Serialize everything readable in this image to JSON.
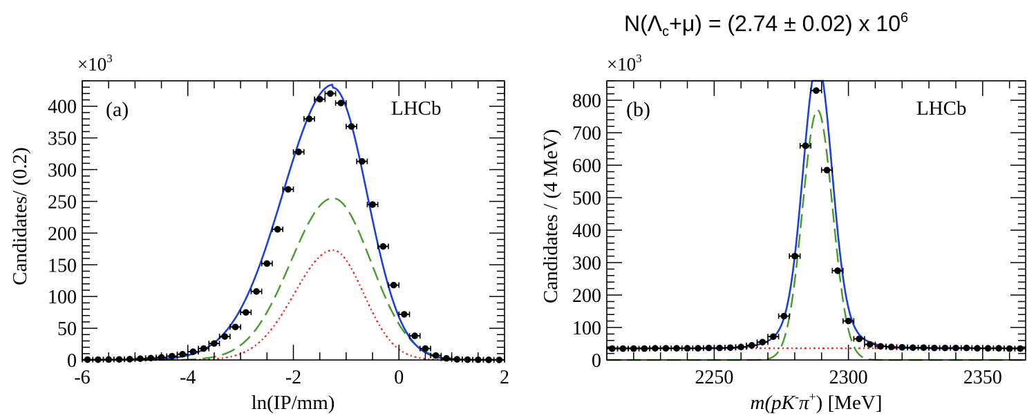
{
  "header_annotation": {
    "prefix": "N(Λ",
    "sub": "c",
    "mid": "+μ) = (2.74 ± 0.02) x 10",
    "sup": "6"
  },
  "colors": {
    "data": "#000000",
    "total_fit": "#1b3fe0",
    "signal": "#4a9a2a",
    "background": "#ee2a2a",
    "frame": "#000000"
  },
  "chart_data": [
    {
      "id": "a",
      "type": "scatter",
      "panel_label": "(a)",
      "experiment_label": "LHCb",
      "multiplier_label": "×10",
      "multiplier_exp": "3",
      "xlabel": "ln(IP/mm)",
      "ylabel": "Candidates/ (0.2)",
      "xlim": [
        -6,
        2
      ],
      "ylim": [
        0,
        440
      ],
      "xticks": [
        -6,
        -4,
        -2,
        0,
        2
      ],
      "xtick_labels": [
        "-6",
        "-4",
        "-2",
        "0",
        "2"
      ],
      "yticks": [
        0,
        50,
        100,
        150,
        200,
        250,
        300,
        350,
        400
      ],
      "ytick_labels": [
        "0",
        "50",
        "100",
        "150",
        "200",
        "250",
        "300",
        "350",
        "400"
      ],
      "bin_width": 0.2,
      "series": [
        {
          "style": "points-with-errors",
          "x": [
            -5.9,
            -5.7,
            -5.5,
            -5.3,
            -5.1,
            -4.9,
            -4.7,
            -4.5,
            -4.3,
            -4.1,
            -3.9,
            -3.7,
            -3.5,
            -3.3,
            -3.1,
            -2.9,
            -2.7,
            -2.5,
            -2.3,
            -2.1,
            -1.9,
            -1.7,
            -1.5,
            -1.3,
            -1.1,
            -0.9,
            -0.7,
            -0.5,
            -0.3,
            -0.1,
            0.1,
            0.3,
            0.5,
            0.7,
            0.9,
            1.1,
            1.3,
            1.5,
            1.7,
            1.9
          ],
          "y": [
            0.5,
            0.5,
            0.7,
            0.9,
            1.3,
            2,
            3,
            4,
            6,
            9,
            13,
            18,
            26,
            37,
            52,
            75,
            108,
            152,
            206,
            269,
            328,
            380,
            411,
            420,
            405,
            368,
            313,
            245,
            179,
            118,
            72,
            38,
            18,
            7,
            2.5,
            1,
            0.5,
            0.3,
            0.2,
            0.1
          ]
        },
        {
          "style": "solid-line",
          "curve": "total",
          "shape": "bifurcated-gaussian",
          "peak": 428,
          "mode": -1.25,
          "sigma_left": 0.95,
          "sigma_right": 0.65,
          "tail_amplitude": 6,
          "tail_decay": 0.7
        },
        {
          "style": "dashed-line",
          "curve": "signal",
          "shape": "bifurcated-gaussian",
          "peak": 255,
          "mode": -1.25,
          "sigma_left": 0.8,
          "sigma_right": 0.72
        },
        {
          "style": "dotted-line",
          "curve": "background",
          "shape": "bifurcated-gaussian",
          "peak": 173,
          "mode": -1.25,
          "sigma_left": 0.73,
          "sigma_right": 0.58
        }
      ]
    },
    {
      "id": "b",
      "type": "scatter",
      "panel_label": "(b)",
      "experiment_label": "LHCb",
      "multiplier_label": "×10",
      "multiplier_exp": "3",
      "xlabel_main": "m(pK",
      "xlabel_sup1": "-",
      "xlabel_mid": "π",
      "xlabel_sup2": "+",
      "xlabel_end": ")",
      "xlabel_unit": " [MeV]",
      "ylabel": "Candidates / (4 MeV)",
      "xlim": [
        2210,
        2366
      ],
      "ylim": [
        0,
        860
      ],
      "xticks": [
        2250,
        2300,
        2350
      ],
      "xtick_labels": [
        "2250",
        "2300",
        "2350"
      ],
      "yticks": [
        0,
        100,
        200,
        300,
        400,
        500,
        600,
        700,
        800
      ],
      "ytick_labels": [
        "0",
        "100",
        "200",
        "300",
        "400",
        "500",
        "600",
        "700",
        "800"
      ],
      "bin_width": 4,
      "series": [
        {
          "style": "points-with-errors",
          "x": [
            2212,
            2216,
            2220,
            2224,
            2228,
            2232,
            2236,
            2240,
            2244,
            2248,
            2252,
            2256,
            2260,
            2264,
            2268,
            2272,
            2276,
            2280,
            2284,
            2288,
            2292,
            2296,
            2300,
            2304,
            2308,
            2312,
            2316,
            2320,
            2324,
            2328,
            2332,
            2336,
            2340,
            2344,
            2348,
            2352,
            2356,
            2360,
            2364
          ],
          "y": [
            35,
            35,
            35,
            35,
            36,
            36,
            36,
            36,
            36,
            37,
            37,
            38,
            40,
            45,
            55,
            72,
            135,
            320,
            660,
            830,
            585,
            275,
            120,
            65,
            48,
            42,
            40,
            39,
            38,
            38,
            37,
            37,
            37,
            37,
            36,
            36,
            36,
            35,
            35
          ]
        },
        {
          "style": "solid-line",
          "curve": "total",
          "shape": "gaussian-plus-constant",
          "peak": 795,
          "mode": 2288.5,
          "sigma": 5.3,
          "tail_peak": 85,
          "tail_sigma": 11,
          "constant": 36
        },
        {
          "style": "dashed-line",
          "curve": "signal",
          "shape": "gaussian",
          "peak": 770,
          "mode": 2288.5,
          "sigma": 5.6
        },
        {
          "style": "dotted-line",
          "curve": "background",
          "shape": "constant",
          "constant": 36
        }
      ]
    }
  ]
}
